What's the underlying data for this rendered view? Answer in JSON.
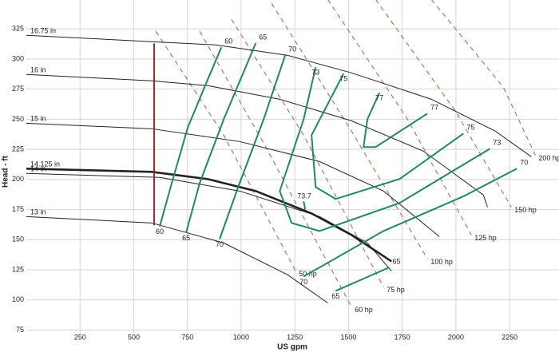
{
  "chart_data": {
    "type": "line",
    "x_label": "US gpm",
    "y_label": "Head - ft",
    "xlim": [
      0,
      2480
    ],
    "ylim": [
      72,
      349
    ],
    "xticks": [
      250,
      500,
      750,
      1000,
      1250,
      1500,
      1750,
      2000,
      2250
    ],
    "yticks": [
      75,
      100,
      125,
      150,
      175,
      200,
      225,
      250,
      275,
      300,
      325
    ],
    "grid": true,
    "impeller_color": "#222222",
    "impeller_curves": [
      {
        "name": "16.75 in",
        "x": [
          0,
          584,
          882,
          1217,
          1514,
          1886,
          2184,
          2351
        ],
        "values": [
          319.7,
          314.4,
          311.7,
          303,
          288.5,
          266.6,
          240.1,
          218.9
        ]
      },
      {
        "name": "16 in",
        "x": [
          0,
          584,
          845,
          1180,
          1514,
          1849,
          2128,
          2147
        ],
        "values": [
          287.2,
          281.9,
          277.9,
          266.6,
          248.7,
          223.5,
          187.1,
          177
        ]
      },
      {
        "name": "15 in",
        "x": [
          0,
          584,
          993,
          1365,
          1663,
          1923
        ],
        "values": [
          246.7,
          242.1,
          231.5,
          214.9,
          190.4,
          152.6
        ]
      },
      {
        "name": "14.125 in",
        "bold": true,
        "x": [
          0,
          584,
          845,
          1068,
          1328,
          1514,
          1700
        ],
        "values": [
          209,
          206.3,
          200.3,
          190.4,
          171.8,
          153.9,
          132
        ]
      },
      {
        "name": "14 in",
        "x": [
          0,
          621,
          993,
          1365,
          1588,
          1700
        ],
        "values": [
          205,
          201.7,
          190.4,
          169.2,
          147.3,
          124
        ]
      },
      {
        "name": "13 in",
        "x": [
          0,
          584,
          919,
          1217,
          1403
        ],
        "values": [
          169.2,
          163.9,
          147.3,
          120.8,
          97.5
        ]
      }
    ],
    "efficiency_color": "#1f8a5c",
    "efficiency_curves": [
      {
        "name": "60",
        "x": [
          621,
          677,
          752,
          845,
          908
        ],
        "values": [
          161,
          197,
          243.4,
          283.2,
          309.7
        ]
      },
      {
        "name": "65",
        "x": [
          744,
          807,
          919,
          1068
        ],
        "values": [
          155.9,
          197,
          250,
          313.1
        ]
      },
      {
        "name": "70",
        "x": [
          900,
          993,
          1105,
          1205
        ],
        "values": [
          150.6,
          197,
          250,
          303.1
        ]
      },
      {
        "name": "73",
        "x": [
          1347,
          1291,
          1180,
          1235,
          1365,
          1737,
          2158
        ],
        "values": [
          293.2,
          250,
          190.4,
          163.9,
          157.2,
          180.4,
          225.5
        ]
      },
      {
        "name": "75",
        "x": [
          1477,
          1328,
          1347,
          1440,
          1737,
          2035
        ],
        "values": [
          287.9,
          236.8,
          193.7,
          183.8,
          200.3,
          238.1
        ]
      },
      {
        "name": "77",
        "x": [
          1644,
          1588,
          1570,
          1626,
          1867
        ],
        "values": [
          272,
          250,
          226.9,
          226.9,
          254.7
        ]
      },
      {
        "name": "70",
        "x": [
          1291,
          1663,
          2035,
          2284
        ],
        "values": [
          119.4,
          157.2,
          186,
          209
        ]
      },
      {
        "name": "65",
        "x": [
          1440,
          1690
        ],
        "values": [
          107.5,
          127
        ]
      }
    ],
    "power_color": "#a0825a",
    "power_curves": [
      {
        "name": "50 hp",
        "x": [
          603,
          919,
          1254
        ],
        "values": [
          323,
          236.8,
          124
        ]
      },
      {
        "name": "60 hp",
        "x": [
          807,
          1105,
          1514
        ],
        "values": [
          323,
          230.2,
          94.2
        ]
      },
      {
        "name": "75 hp",
        "x": [
          955,
          1291,
          1663
        ],
        "values": [
          333,
          236.8,
          110.8
        ]
      },
      {
        "name": "100 hp",
        "x": [
          1142,
          1514,
          1868
        ],
        "values": [
          346.2,
          240.1,
          134
        ]
      },
      {
        "name": "125 hp",
        "x": [
          1403,
          1775,
          2072
        ],
        "values": [
          349.5,
          250,
          153.9
        ]
      },
      {
        "name": "150 hp",
        "x": [
          1626,
          1998,
          2258
        ],
        "values": [
          349.5,
          256.7,
          177
        ]
      },
      {
        "name": "200 hp",
        "x": [
          1886,
          2221,
          2370
        ],
        "values": [
          349.5,
          276.6,
          220
        ]
      }
    ],
    "operating_line": {
      "color": "#a02828",
      "x": [
        595,
        595
      ],
      "values": [
        162,
        313
      ]
    },
    "annotations": [
      {
        "text": "73.7",
        "x": 1291,
        "y": 178.5
      }
    ]
  }
}
